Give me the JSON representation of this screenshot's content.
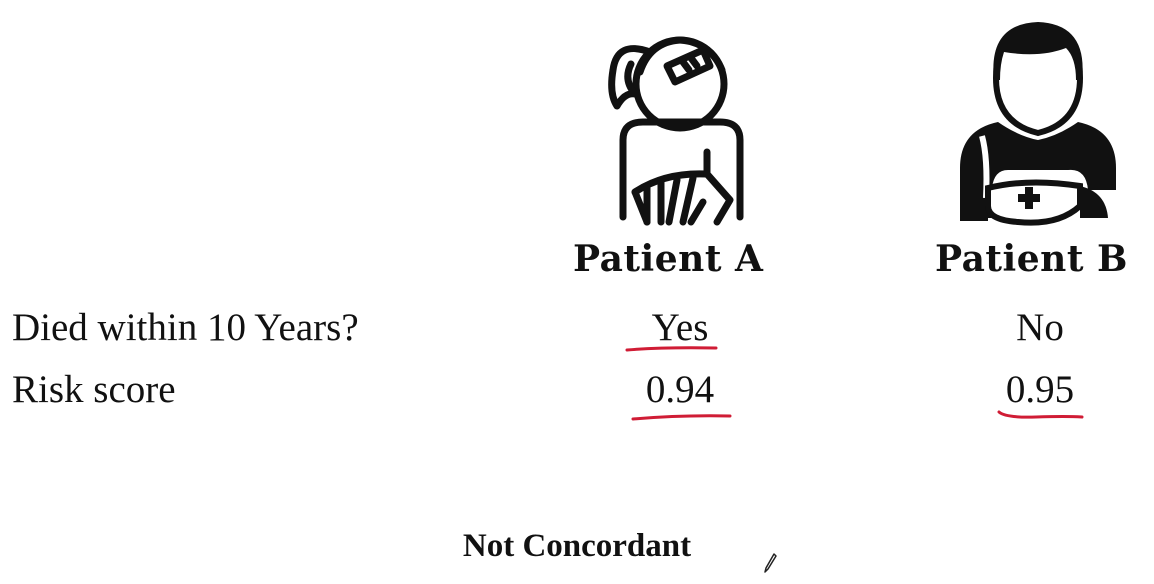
{
  "patients": [
    {
      "name": "Patient A",
      "icon": "woman-with-arm-sling-icon",
      "died": "Yes",
      "risk": "0.94"
    },
    {
      "name": "Patient B",
      "icon": "man-with-arm-sling-icon",
      "died": "No",
      "risk": "0.95"
    }
  ],
  "rows": {
    "died_label": "Died within 10 Years?",
    "risk_label": "Risk score"
  },
  "conclusion": "Not Concordant",
  "colors": {
    "text": "#111111",
    "annotation_red": "#d01c35"
  }
}
